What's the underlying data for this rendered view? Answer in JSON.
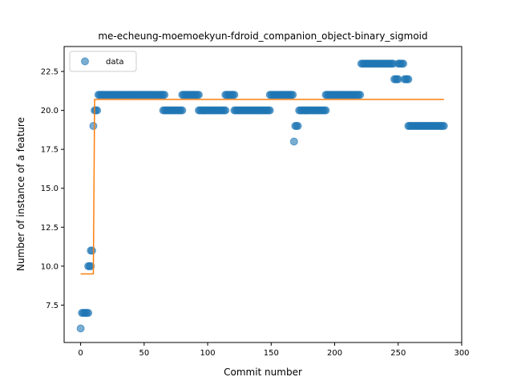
{
  "chart_data": {
    "type": "scatter",
    "title": "me-echeung-moemoekyun-fdroid_companion_object-binary_sigmoid",
    "xlabel": "Commit number",
    "ylabel": "Number of instance of a feature",
    "xlim": [
      -13,
      300
    ],
    "ylim": [
      5.1,
      24.1
    ],
    "xticks": [
      0,
      50,
      100,
      150,
      200,
      250,
      300
    ],
    "yticks": [
      7.5,
      10.0,
      12.5,
      15.0,
      17.5,
      20.0,
      22.5
    ],
    "ytick_labels": [
      "7.5",
      "10.0",
      "12.5",
      "15.0",
      "17.5",
      "20.0",
      "22.5"
    ],
    "legend": {
      "position": "top-left",
      "entries": [
        "data"
      ]
    },
    "colors": {
      "data": "#1f77b4",
      "fit": "#ff7f0e"
    },
    "series": [
      {
        "name": "data",
        "kind": "points",
        "runs": [
          {
            "x_start": 0,
            "x_end": 0,
            "y": 6
          },
          {
            "x_start": 1,
            "x_end": 6,
            "y": 7
          },
          {
            "x_start": 6,
            "x_end": 8,
            "y": 10
          },
          {
            "x_start": 8,
            "x_end": 9,
            "y": 11
          },
          {
            "x_start": 10,
            "x_end": 10,
            "y": 19
          },
          {
            "x_start": 11,
            "x_end": 13,
            "y": 20
          },
          {
            "x_start": 14,
            "x_end": 66,
            "y": 21
          },
          {
            "x_start": 65,
            "x_end": 80,
            "y": 20
          },
          {
            "x_start": 80,
            "x_end": 93,
            "y": 21
          },
          {
            "x_start": 93,
            "x_end": 114,
            "y": 20
          },
          {
            "x_start": 114,
            "x_end": 121,
            "y": 21
          },
          {
            "x_start": 121,
            "x_end": 149,
            "y": 20
          },
          {
            "x_start": 149,
            "x_end": 167,
            "y": 21
          },
          {
            "x_start": 168,
            "x_end": 168,
            "y": 18
          },
          {
            "x_start": 169,
            "x_end": 171,
            "y": 19
          },
          {
            "x_start": 172,
            "x_end": 193,
            "y": 20
          },
          {
            "x_start": 193,
            "x_end": 220,
            "y": 21
          },
          {
            "x_start": 221,
            "x_end": 246,
            "y": 23
          },
          {
            "x_start": 247,
            "x_end": 250,
            "y": 22
          },
          {
            "x_start": 250,
            "x_end": 254,
            "y": 23
          },
          {
            "x_start": 255,
            "x_end": 258,
            "y": 22
          },
          {
            "x_start": 258,
            "x_end": 286,
            "y": 19
          }
        ]
      },
      {
        "name": "",
        "kind": "step-line",
        "points": [
          [
            0,
            9.5
          ],
          [
            10,
            9.5
          ],
          [
            11,
            20.7
          ],
          [
            286,
            20.7
          ]
        ]
      }
    ]
  }
}
